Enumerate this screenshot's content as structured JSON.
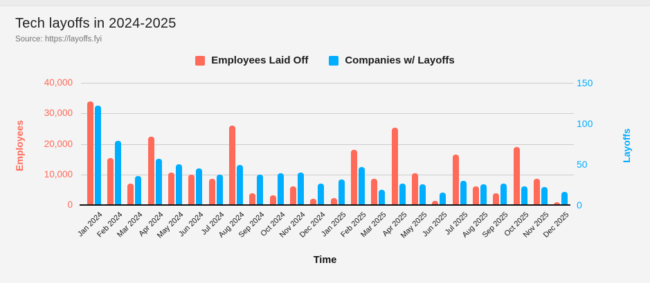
{
  "page": {
    "title": "Tech layoffs in 2024-2025",
    "source": "Source: https://layoffs.fyi"
  },
  "legend": [
    {
      "label": "Employees Laid Off",
      "color": "#ff6a59"
    },
    {
      "label": "Companies w/ Layoffs",
      "color": "#00aeff"
    }
  ],
  "colors": {
    "background": "#f4f4f4",
    "gridline": "#cccccc",
    "axis_line": "#111111",
    "employees_accent": "#ff6a59",
    "companies_accent": "#00aeff"
  },
  "chart_data": {
    "type": "bar",
    "title": "Tech layoffs in 2024-2025",
    "xlabel": "Time",
    "grid": true,
    "legend_position": "top",
    "categories": [
      "Jan 2024",
      "Feb 2024",
      "Mar 2024",
      "Apr 2024",
      "May 2024",
      "Jun 2024",
      "Jul 2024",
      "Aug 2024",
      "Sep 2024",
      "Oct 2024",
      "Nov 2024",
      "Dec 2024",
      "Jan 2025",
      "Feb 2025",
      "Mar 2025",
      "Apr 2025",
      "May 2025",
      "Jun 2025",
      "Jul 2025",
      "Aug 2025",
      "Sep 2025",
      "Oct 2025",
      "Nov 2025",
      "Dec 2025"
    ],
    "series": [
      {
        "name": "Employees Laid Off",
        "axis": "left",
        "color": "#ff6a59",
        "values": [
          34000,
          15400,
          7100,
          22400,
          10600,
          9900,
          8600,
          26000,
          3800,
          3100,
          6100,
          2100,
          2200,
          18000,
          8500,
          25300,
          10400,
          1400,
          16400,
          6000,
          3900,
          18900,
          8500,
          1000
        ]
      },
      {
        "name": "Companies w/ Layoffs",
        "axis": "right",
        "color": "#00aeff",
        "values": [
          122,
          79,
          36,
          57,
          50,
          45,
          37,
          49,
          37,
          39,
          40,
          26,
          31,
          47,
          19,
          26,
          25,
          15,
          30,
          25,
          26,
          23,
          22,
          16
        ]
      }
    ],
    "left_axis": {
      "title": "Employees",
      "ticks": [
        0,
        10000,
        20000,
        30000,
        40000
      ],
      "max": 40000,
      "color": "#ff6a59"
    },
    "right_axis": {
      "title": "Layoffs",
      "ticks": [
        0,
        50,
        100,
        150
      ],
      "max": 150,
      "color": "#00aeff"
    }
  }
}
